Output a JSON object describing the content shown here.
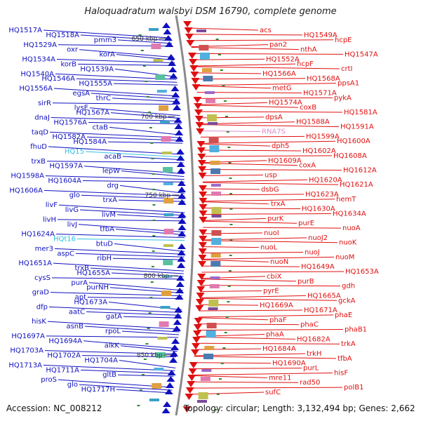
{
  "title": "Haloquadratum walsbyi DSM 16790, complete genome",
  "footer": {
    "accession": "Accession: NC_008212",
    "summary": "Topology: circular; Length: 3,132,494 bp; Genes: 2,662"
  },
  "colors": {
    "left_strand": "#1010c0",
    "right_strand": "#e01010",
    "rna_label": "#e08ad0",
    "cyan_label": "#30c0e0",
    "backbone": "#8a8a8a",
    "tick": "#2e8a2e"
  },
  "ticks": [
    {
      "label": "650 kbp"
    },
    {
      "label": "700 kbp"
    },
    {
      "label": "750 kbp"
    },
    {
      "label": "800 kbp"
    },
    {
      "label": "850 kbp"
    }
  ],
  "left_labels": [
    "HQ1517A",
    "HQ1518A",
    "pmm3",
    "HQ1529A",
    "oxr",
    "korA",
    "HQ1534A",
    "korB",
    "HQ1539A",
    "HQ1540A",
    "HQ1546A",
    "HQ1555A",
    "HQ1556A",
    "egsA",
    "thrC",
    "sirR",
    "lysE",
    "HQ1567A",
    "dnaJ",
    "HQ1576A",
    "ctaB",
    "taqD",
    "HQ1582A",
    "HQ1584A",
    "fhuD",
    "HQ15",
    "acaB",
    "trxB",
    "HQ1597A",
    "lepW",
    "HQ1598A",
    "HQ1604A",
    "drg",
    "HQ1606A",
    "glo",
    "trxA",
    "livF",
    "livG",
    "livM",
    "livH",
    "livJ",
    "tfbA",
    "HQ1624A",
    "HQt16",
    "btuD",
    "mer3",
    "aspC",
    "ribH",
    "HQ1651A",
    "trxB",
    "HQ1655A",
    "cysS",
    "purA",
    "purNH",
    "graD",
    "apt",
    "HQ1673A",
    "dfp",
    "aatC",
    "gatA",
    "hisK",
    "asnB",
    "rpoL",
    "HQ1697A",
    "HQ1694A",
    "alkK",
    "HQ1703A",
    "HQ1702A",
    "HQ1704A",
    "HQ1713A",
    "HQ1711A",
    "gltB",
    "proS",
    "glo",
    "HQ1717H"
  ],
  "right_labels": [
    "acs",
    "HQ1549A",
    "hcpE",
    "pan2",
    "nthA",
    "HQ1547A",
    "HQ1552A",
    "hcpF",
    "crtI",
    "HQ1566A",
    "HQ1568A",
    "ppsA1",
    "metG",
    "HQ1571A",
    "pykA",
    "HQ1574A",
    "coxB",
    "HQ1581A",
    "dpsA",
    "HQ1588A",
    "HQ1591A",
    "RNA7S",
    "HQ1599A",
    "HQ1600A",
    "dph5",
    "HQ1602A",
    "HQ1608A",
    "HQ1609A",
    "coxA",
    "HQ1612A",
    "usp",
    "HQ1620A",
    "HQ1621A",
    "dsbG",
    "HQ1623A",
    "hemT",
    "trxA",
    "HQ1630A",
    "HQ1634A",
    "purK",
    "purE",
    "nuoA",
    "nuoI",
    "nuoJ2",
    "nuoK",
    "nuoL",
    "nuoJ",
    "nuoM",
    "nuoN",
    "HQ1649A",
    "HQ1653A",
    "cbiX",
    "purB",
    "gdh",
    "pyrE",
    "HQ1665A",
    "gckA",
    "HQ1669A",
    "HQ1671A",
    "phaE",
    "phaF",
    "phaC",
    "phaB1",
    "phaA",
    "HQ1682A",
    "trkA",
    "HQ1684A",
    "trkH",
    "tfbA",
    "HQ1690A",
    "purL",
    "hisF",
    "mre11",
    "rad50",
    "polB1",
    "sufC"
  ]
}
